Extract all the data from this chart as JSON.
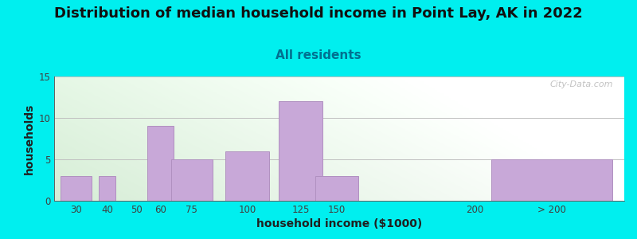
{
  "title": "Distribution of median household income in Point Lay, AK in 2022",
  "subtitle": "All residents",
  "xlabel": "household income ($1000)",
  "ylabel": "households",
  "bar_labels": [
    "30",
    "40",
    "50",
    "60",
    "75",
    "100",
    "125",
    "150",
    "200",
    "> 200"
  ],
  "bar_heights": [
    3,
    3,
    0,
    9,
    5,
    6,
    12,
    3,
    0,
    5
  ],
  "bar_color": "#c8a8d8",
  "bar_edgecolor": "#b090c0",
  "ylim": [
    0,
    15
  ],
  "yticks": [
    0,
    5,
    10,
    15
  ],
  "background_outer": "#00efef",
  "title_fontsize": 13,
  "subtitle_fontsize": 11,
  "subtitle_color": "#007090",
  "axis_label_fontsize": 10,
  "watermark": "City-Data.com"
}
